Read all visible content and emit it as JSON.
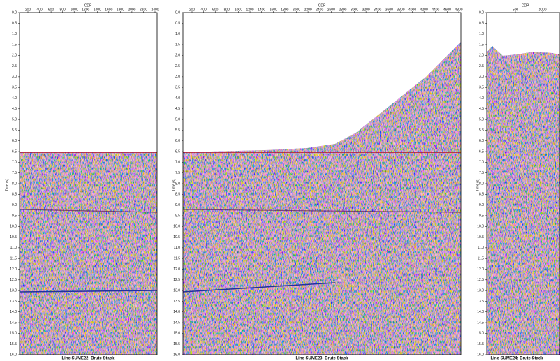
{
  "panels": [
    {
      "x_label": "CDP",
      "y_label": "Time (s)",
      "caption": "Line SUME22: Brute Stack",
      "x_ticks": [
        "200",
        "400",
        "600",
        "800",
        "1000",
        "1200",
        "1400",
        "1600",
        "1800",
        "2000",
        "2200",
        "2400"
      ],
      "y_ticks": [
        "0.0",
        "0.5",
        "1.0",
        "1.5",
        "2.0",
        "2.5",
        "3.0",
        "3.5",
        "4.0",
        "4.5",
        "5.0",
        "5.5",
        "6.0",
        "6.5",
        "7.0",
        "7.5",
        "8.0",
        "8.5",
        "9.0",
        "9.5",
        "10.0",
        "10.5",
        "11.0",
        "11.5",
        "12.0",
        "12.5",
        "13.0",
        "13.5",
        "14.0",
        "14.5",
        "15.0",
        "15.5",
        "16.0"
      ]
    },
    {
      "x_label": "CDP",
      "y_label": "Time (s)",
      "caption": "Line SUME23: Brute Stack",
      "x_ticks": [
        "200",
        "400",
        "600",
        "800",
        "1000",
        "1200",
        "1400",
        "1600",
        "1800",
        "2000",
        "2200",
        "2400",
        "2600",
        "2800",
        "3000",
        "3200",
        "3400",
        "3600",
        "3800",
        "4000",
        "4200",
        "4400",
        "4600",
        "4800"
      ],
      "y_ticks": [
        "0.0",
        "0.5",
        "1.0",
        "1.5",
        "2.0",
        "2.5",
        "3.0",
        "3.5",
        "4.0",
        "4.5",
        "5.0",
        "5.5",
        "6.0",
        "6.5",
        "7.0",
        "7.5",
        "8.0",
        "8.5",
        "9.0",
        "9.5",
        "10.0",
        "10.5",
        "11.0",
        "11.5",
        "12.0",
        "12.5",
        "13.0",
        "13.5",
        "14.0",
        "14.5",
        "15.0",
        "15.5",
        "16.0"
      ]
    },
    {
      "x_label": "CDP",
      "y_label": "Time (s)",
      "caption": "Line SUME24: Brute Stack",
      "x_ticks": [
        "500",
        "1000"
      ],
      "y_ticks": [
        "0.0",
        "0.5",
        "1.0",
        "1.5",
        "2.0",
        "2.5",
        "3.0",
        "3.5",
        "4.0",
        "4.5",
        "5.0",
        "5.5",
        "6.0",
        "6.5",
        "7.0",
        "7.5",
        "8.0",
        "8.5",
        "9.0",
        "9.5",
        "10.0",
        "10.5",
        "11.0",
        "11.5",
        "12.0",
        "12.5",
        "13.0",
        "13.5",
        "14.0",
        "14.5",
        "15.0",
        "15.5",
        "16.0"
      ]
    }
  ]
}
